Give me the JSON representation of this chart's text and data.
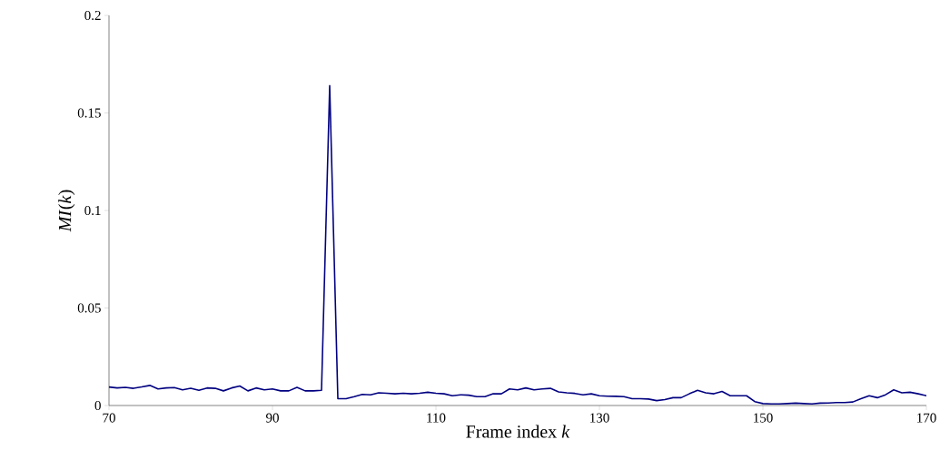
{
  "chart_data": {
    "type": "line",
    "xlabel": "Frame index *k*",
    "ylabel": "*MI*(*k*)",
    "x": [
      70,
      71,
      72,
      73,
      74,
      75,
      76,
      77,
      78,
      79,
      80,
      81,
      82,
      83,
      84,
      85,
      86,
      87,
      88,
      89,
      90,
      91,
      92,
      93,
      94,
      95,
      96,
      97,
      98,
      99,
      100,
      101,
      102,
      103,
      104,
      105,
      106,
      107,
      108,
      109,
      110,
      111,
      112,
      113,
      114,
      115,
      116,
      117,
      118,
      119,
      120,
      121,
      122,
      123,
      124,
      125,
      126,
      127,
      128,
      129,
      130,
      131,
      132,
      133,
      134,
      135,
      136,
      137,
      138,
      139,
      140,
      141,
      142,
      143,
      144,
      145,
      146,
      147,
      148,
      149,
      150,
      151,
      152,
      153,
      154,
      155,
      156,
      157,
      158,
      159,
      160,
      161,
      162,
      163,
      164,
      165,
      166,
      167,
      168,
      169,
      170
    ],
    "series": [
      {
        "color": "#000080",
        "values": [
          0.0095,
          0.009,
          0.0093,
          0.0088,
          0.0095,
          0.0103,
          0.0085,
          0.009,
          0.0092,
          0.008,
          0.0088,
          0.0078,
          0.009,
          0.0088,
          0.0075,
          0.009,
          0.01,
          0.0075,
          0.009,
          0.008,
          0.0085,
          0.0075,
          0.0075,
          0.0093,
          0.0075,
          0.0075,
          0.0078,
          0.164,
          0.0035,
          0.0035,
          0.0045,
          0.0057,
          0.0055,
          0.0065,
          0.0063,
          0.006,
          0.0063,
          0.006,
          0.0063,
          0.0068,
          0.0063,
          0.006,
          0.005,
          0.0055,
          0.0053,
          0.0045,
          0.0045,
          0.006,
          0.006,
          0.0085,
          0.008,
          0.009,
          0.008,
          0.0085,
          0.0088,
          0.007,
          0.0065,
          0.0062,
          0.0055,
          0.006,
          0.005,
          0.0048,
          0.0047,
          0.0045,
          0.0035,
          0.0035,
          0.0033,
          0.0025,
          0.003,
          0.004,
          0.004,
          0.006,
          0.0078,
          0.0065,
          0.006,
          0.0072,
          0.005,
          0.005,
          0.005,
          0.002,
          0.001,
          0.0008,
          0.0008,
          0.001,
          0.0012,
          0.001,
          0.0008,
          0.0012,
          0.0013,
          0.0015,
          0.0015,
          0.0018,
          0.0035,
          0.005,
          0.004,
          0.0055,
          0.008,
          0.0065,
          0.0068,
          0.006,
          0.005
        ]
      }
    ],
    "xlim": [
      70,
      170
    ],
    "ylim": [
      0,
      0.2
    ],
    "xticks": [
      70,
      90,
      110,
      130,
      150,
      170
    ],
    "yticks": [
      0,
      0.05,
      0.1,
      0.15,
      0.2
    ],
    "marker": "none",
    "line_style": "solid"
  }
}
